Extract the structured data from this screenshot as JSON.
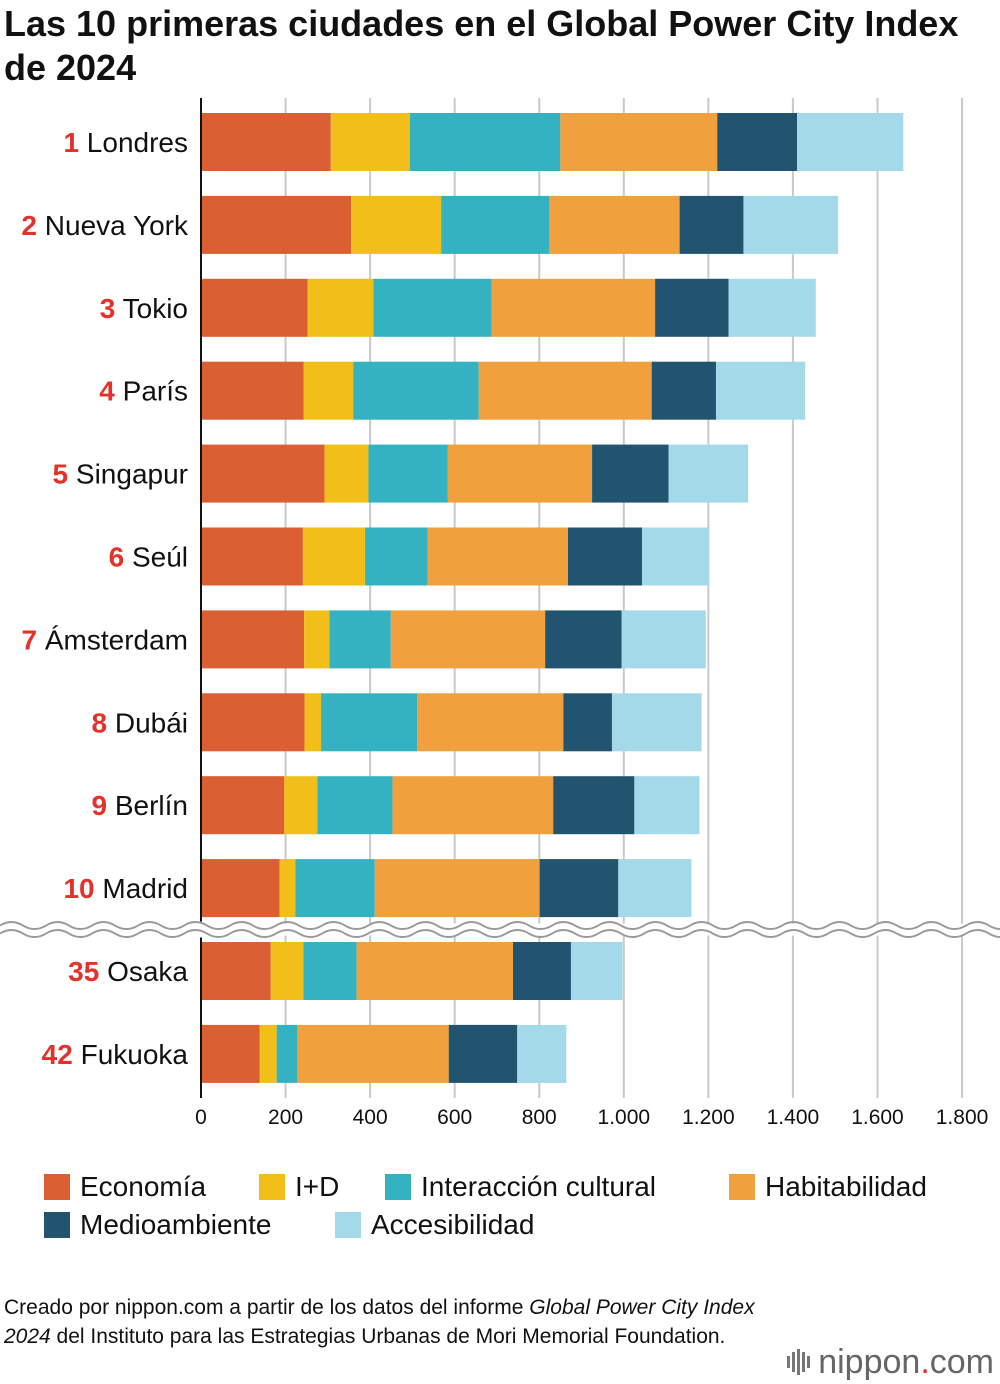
{
  "colors": {
    "economia": "#da5f32",
    "id": "#f1be1a",
    "interaccion": "#35b2c2",
    "habitabilidad": "#f0a03c",
    "medioambiente": "#22536f",
    "accesibilidad": "#a4d9ea",
    "rank": "#e4322b",
    "grid": "#c9c9c9",
    "axis": "#111111"
  },
  "chart_data": {
    "type": "bar",
    "orientation": "horizontal",
    "stacked": true,
    "title": "Las 10 primeras ciudades en el Global Power City Index de 2024",
    "categories": [
      {
        "rank": "1",
        "name": "Londres"
      },
      {
        "rank": "2",
        "name": "Nueva York"
      },
      {
        "rank": "3",
        "name": "Tokio"
      },
      {
        "rank": "4",
        "name": "París"
      },
      {
        "rank": "5",
        "name": "Singapur"
      },
      {
        "rank": "6",
        "name": "Seúl"
      },
      {
        "rank": "7",
        "name": "Ámsterdam"
      },
      {
        "rank": "8",
        "name": "Dubái"
      },
      {
        "rank": "9",
        "name": "Berlín"
      },
      {
        "rank": "10",
        "name": "Madrid"
      },
      {
        "rank": "35",
        "name": "Osaka"
      },
      {
        "rank": "42",
        "name": "Fukuoka"
      }
    ],
    "axis_break_after_index": 9,
    "series": [
      {
        "key": "economia",
        "name": "Economía",
        "values": [
          307,
          355,
          252,
          243,
          292,
          241,
          244,
          245,
          197,
          186,
          165,
          139
        ]
      },
      {
        "key": "id",
        "name": "I+D",
        "values": [
          187,
          213,
          156,
          117,
          104,
          147,
          60,
          39,
          78,
          37,
          77,
          40
        ]
      },
      {
        "key": "interaccion",
        "name": "Interacción cultural",
        "values": [
          356,
          256,
          279,
          297,
          187,
          148,
          145,
          227,
          178,
          188,
          126,
          49
        ]
      },
      {
        "key": "habitabilidad",
        "name": "Habitabilidad",
        "values": [
          371,
          308,
          387,
          409,
          342,
          332,
          365,
          346,
          380,
          390,
          370,
          358
        ]
      },
      {
        "key": "medioambiente",
        "name": "Medioambiente",
        "values": [
          189,
          151,
          174,
          152,
          181,
          175,
          181,
          115,
          192,
          186,
          137,
          162
        ]
      },
      {
        "key": "accesibilidad",
        "name": "Accesibilidad",
        "values": [
          251,
          224,
          206,
          211,
          188,
          159,
          199,
          212,
          154,
          173,
          122,
          116
        ]
      }
    ],
    "xlim": [
      0,
      1800
    ],
    "xticks": [
      "0",
      "200",
      "400",
      "600",
      "800",
      "1.000",
      "1.200",
      "1.400",
      "1.600",
      "1.800"
    ],
    "xtick_values": [
      0,
      200,
      400,
      600,
      800,
      1000,
      1200,
      1400,
      1600,
      1800
    ],
    "grid": true,
    "legend_position": "bottom"
  },
  "legend": [
    {
      "key": "economia",
      "label": "Economía"
    },
    {
      "key": "id",
      "label": "I+D"
    },
    {
      "key": "interaccion",
      "label": "Interacción cultural"
    },
    {
      "key": "habitabilidad",
      "label": "Habitabilidad"
    },
    {
      "key": "medioambiente",
      "label": "Medioambiente"
    },
    {
      "key": "accesibilidad",
      "label": "Accesibilidad"
    }
  ],
  "source": {
    "line_prefix": "Creado por nippon.com a partir de los datos del informe ",
    "report_italic": "Global Power City Index 2024",
    "line_suffix": " del Instituto para las Estrategias Urbanas de Mori Memorial Foundation."
  },
  "brand": {
    "name_a": "nippon",
    "dot": ".",
    "name_b": "com"
  }
}
